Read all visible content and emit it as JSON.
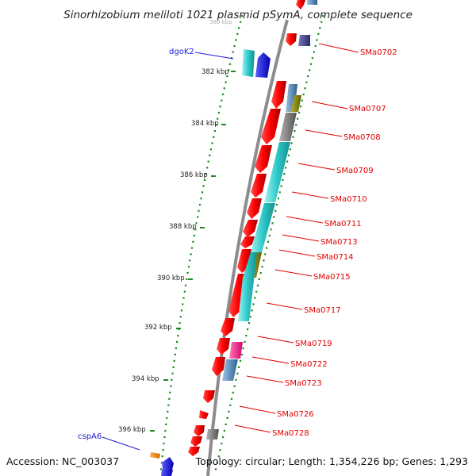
{
  "title": "Sinorhizobium meliloti 1021 plasmid pSymA, complete sequence",
  "accession": "Accession: NC_003037",
  "topology": "Topology: circular; Length: 1,354,226 bp; Genes: 1,293",
  "scale_ticks": [
    {
      "label": "382 kbp"
    },
    {
      "label": "384 kbp"
    },
    {
      "label": "386 kbp"
    },
    {
      "label": "388 kbp"
    },
    {
      "label": "390 kbp"
    },
    {
      "label": "392 kbp"
    },
    {
      "label": "394 kbp"
    },
    {
      "label": "396 kbp"
    }
  ],
  "gene_labels_right": [
    "SMa0702",
    "SMa0707",
    "SMa0708",
    "SMa0709",
    "SMa0710",
    "SMa0711",
    "SMa0713",
    "SMa0714",
    "SMa0715",
    "SMa0717",
    "SMa0719",
    "SMa0722",
    "SMa0723",
    "SMa0726",
    "SMa0728"
  ],
  "gene_labels_left": [
    "dgoK2",
    "cspA6"
  ],
  "colors": {
    "gene_forward": "#ff0000",
    "cog_cyan": "#33cccc",
    "cog_olive": "#808000",
    "cog_steel": "#4682b4",
    "cog_pink": "#ff1493",
    "cog_orange": "#ff8c00",
    "cog_gray": "#808080",
    "backbone": "#8c8c8c",
    "tick_dots": "#1a8a1a",
    "label_red": "#e00000",
    "label_blue": "#1a1ad6"
  }
}
